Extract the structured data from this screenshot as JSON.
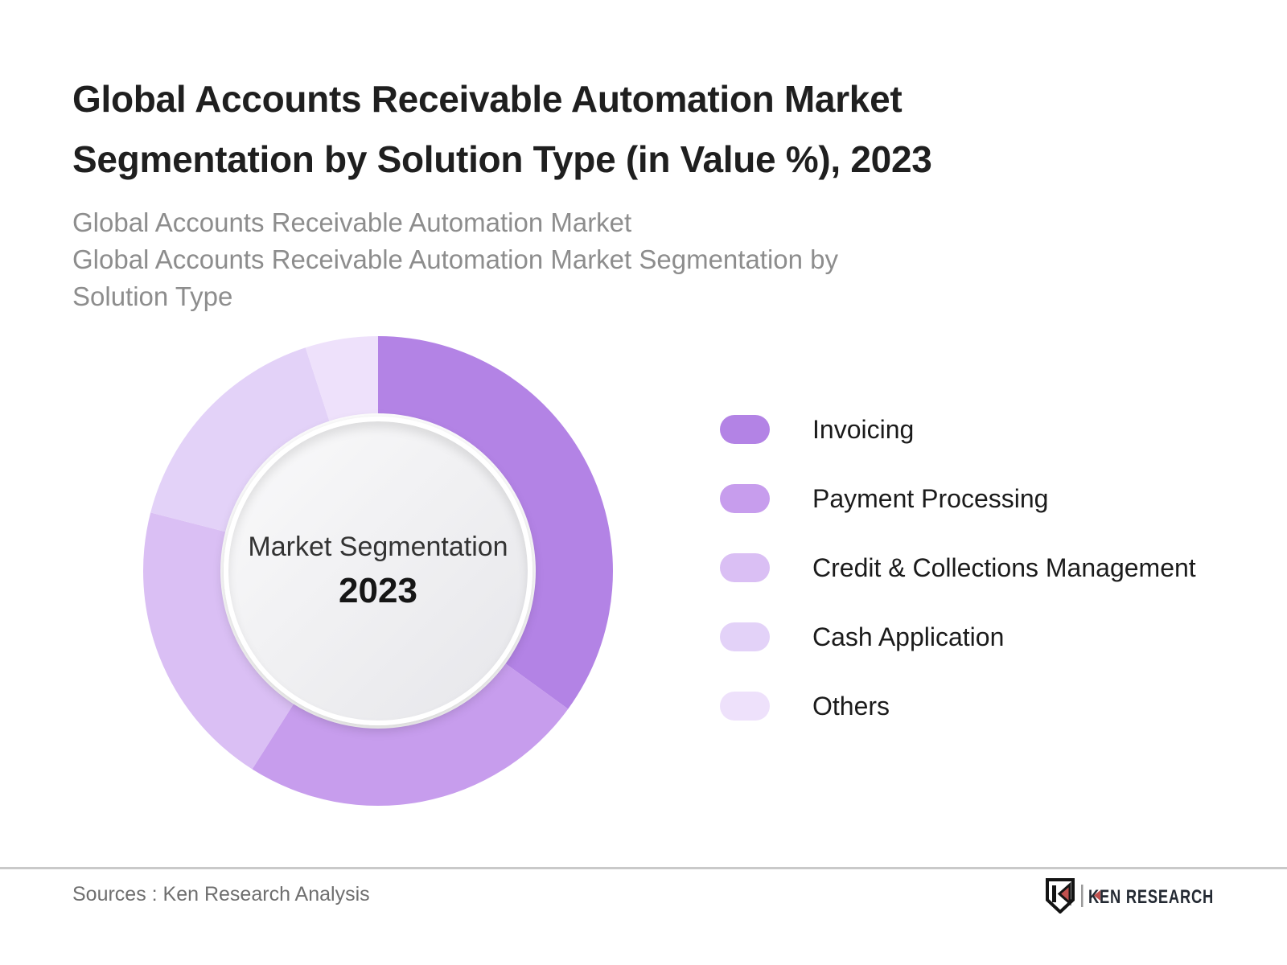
{
  "page": {
    "title": "Global Accounts Receivable Automation Market Segmentation by Solution Type (in Value %), 2023",
    "subtitle_lines": [
      "Global Accounts Receivable Automation Market",
      "Global Accounts Receivable Automation Market Segmentation by",
      "Solution Type"
    ]
  },
  "chart_data": {
    "type": "pie",
    "subtype": "donut",
    "title": "Global Accounts Receivable Automation Market Segmentation by Solution Type (in Value %), 2023",
    "categories": [
      "Invoicing",
      "Payment Processing",
      "Credit & Collections Management",
      "Cash Application",
      "Others"
    ],
    "values": [
      35,
      24,
      20,
      16,
      5
    ],
    "unit": "%",
    "note": "Donut shows no numeric labels; values estimated from arc angles",
    "colors": [
      "#b383e5",
      "#c79ded",
      "#dabff4",
      "#e3d2f8",
      "#eee1fb"
    ],
    "start_angle_deg": 0,
    "direction": "clockwise",
    "legend_position": "right",
    "center_label": "Market Segmentation",
    "center_year": "2023"
  },
  "footer": {
    "source_text": "Sources : Ken Research Analysis",
    "logo_text": "KEN RESEARCH"
  }
}
